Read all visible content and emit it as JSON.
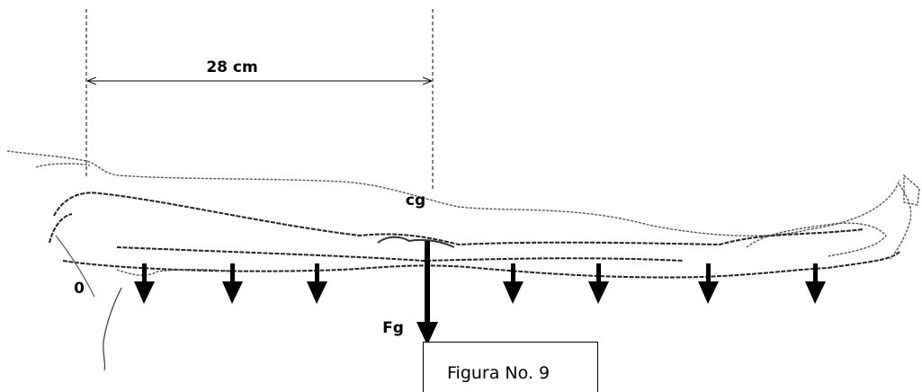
{
  "dimension": {
    "label": "28 cm"
  },
  "labels": {
    "cg": "cg",
    "origin": "0",
    "force": "Fg"
  },
  "caption": "Figura No. 9"
}
